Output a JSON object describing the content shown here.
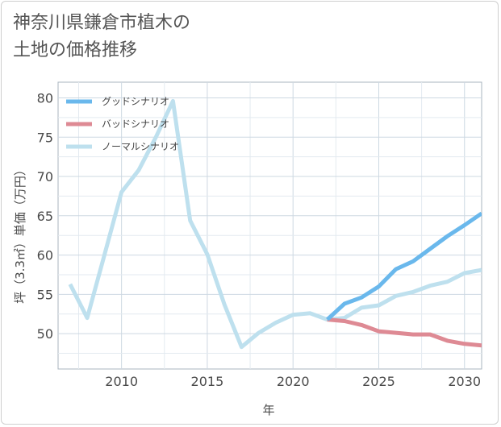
{
  "chart_data": {
    "type": "line",
    "title_lines": [
      "神奈川県鎌倉市植木の",
      "土地の価格推移"
    ],
    "xlabel": "年",
    "ylabel": "坪（3.3㎡）単価（万円）",
    "xlim": [
      2006.3,
      2031
    ],
    "ylim": [
      45.5,
      82
    ],
    "xticks": [
      2010,
      2015,
      2020,
      2025,
      2030
    ],
    "yticks": [
      50,
      55,
      60,
      65,
      70,
      75,
      80
    ],
    "legend_position": "top-left",
    "series": [
      {
        "name": "グッドシナリオ",
        "color": "#6ab8ec",
        "x": [
          2022,
          2023,
          2024,
          2025,
          2026,
          2027,
          2028,
          2029,
          2030,
          2031
        ],
        "values": [
          51.8,
          53.8,
          54.6,
          56.0,
          58.2,
          59.2,
          60.8,
          62.4,
          63.8,
          65.3
        ]
      },
      {
        "name": "バッドシナリオ",
        "color": "#de8a94",
        "x": [
          2022,
          2023,
          2024,
          2025,
          2026,
          2027,
          2028,
          2029,
          2030,
          2031
        ],
        "values": [
          51.8,
          51.6,
          51.1,
          50.3,
          50.1,
          49.9,
          49.9,
          49.1,
          48.7,
          48.5
        ]
      },
      {
        "name": "ノーマルシナリオ",
        "color": "#bee0ee",
        "x": [
          2007,
          2008,
          2009,
          2010,
          2011,
          2012,
          2013,
          2014,
          2015,
          2016,
          2017,
          2018,
          2019,
          2020,
          2021,
          2022,
          2023,
          2024,
          2025,
          2026,
          2027,
          2028,
          2029,
          2030,
          2031
        ],
        "values": [
          56.3,
          52.0,
          60.0,
          68.0,
          70.8,
          75.0,
          79.6,
          64.4,
          60.1,
          53.7,
          48.3,
          50.1,
          51.4,
          52.4,
          52.6,
          51.8,
          52.0,
          53.3,
          53.6,
          54.8,
          55.3,
          56.1,
          56.6,
          57.7,
          58.1
        ]
      }
    ]
  }
}
